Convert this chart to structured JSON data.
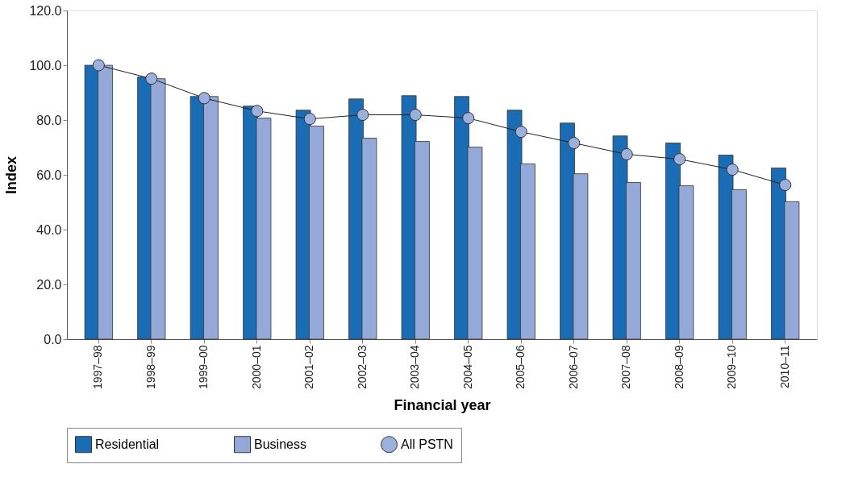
{
  "chart_data": {
    "type": "bar",
    "xlabel": "Financial year",
    "ylabel": "Index",
    "categories": [
      "1997–98",
      "1998–99",
      "1999–00",
      "2000–01",
      "2001–02",
      "2002–03",
      "2003–04",
      "2004–05",
      "2005–06",
      "2006–07",
      "2007–08",
      "2008–09",
      "2009–10",
      "2010–11"
    ],
    "series": [
      {
        "name": "Residential",
        "color": "#1a6db5",
        "values": [
          100.0,
          95.7,
          88.6,
          85.1,
          83.6,
          87.7,
          88.9,
          88.6,
          83.6,
          78.9,
          74.2,
          71.6,
          67.2,
          62.5
        ]
      },
      {
        "name": "Business",
        "color": "#94a9d8",
        "values": [
          100.0,
          95.1,
          88.6,
          80.7,
          77.8,
          73.4,
          72.2,
          70.1,
          64.0,
          60.4,
          57.2,
          56.0,
          54.6,
          50.2
        ]
      },
      {
        "name": "All PSTN",
        "type": "line",
        "marker": "circle",
        "color": "#9bb0dc",
        "values": [
          100.0,
          95.1,
          88.0,
          83.3,
          80.4,
          81.9,
          81.9,
          80.7,
          75.7,
          71.6,
          67.5,
          65.7,
          61.9,
          56.3
        ]
      }
    ],
    "ylim": [
      0,
      120
    ],
    "yticks": [
      {
        "value": 0,
        "label": "0.0"
      },
      {
        "value": 20,
        "label": "20.0"
      },
      {
        "value": 40,
        "label": "40.0"
      },
      {
        "value": 60,
        "label": "60.0"
      },
      {
        "value": 80,
        "label": "80.0"
      },
      {
        "value": 100,
        "label": "100.0"
      },
      {
        "value": 120,
        "label": "120.0"
      }
    ],
    "grid": false,
    "legend": "bottom"
  }
}
